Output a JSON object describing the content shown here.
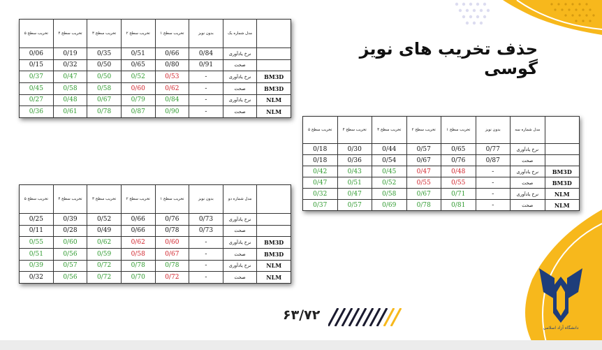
{
  "title": "حذف تخریب های نویز گوسی",
  "page_number": "۶۳/۷۲",
  "colors": {
    "green": "#2e9a2e",
    "red": "#d0222a",
    "accent_yellow": "#f7b81c",
    "navy": "#1e3d7a"
  },
  "table1": {
    "headers": [
      "تخریب سطح ۵",
      "تخریب سطح ۴",
      "تخریب سطح ۳",
      "تخریب سطح ۲",
      "تخریب سطح ۱",
      "بدون نویز",
      "مدل شماره یک",
      ""
    ],
    "rows": [
      {
        "cells": [
          "0/06",
          "0/19",
          "0/35",
          "0/51",
          "0/66",
          "0/84"
        ],
        "colors": [
          "b",
          "b",
          "b",
          "b",
          "b",
          "b"
        ],
        "metric": "نرخ یادآوری",
        "method": ""
      },
      {
        "cells": [
          "0/15",
          "0/32",
          "0/50",
          "0/65",
          "0/80",
          "0/91"
        ],
        "colors": [
          "b",
          "b",
          "b",
          "b",
          "b",
          "b"
        ],
        "metric": "صحت",
        "method": ""
      },
      {
        "cells": [
          "0/37",
          "0/47",
          "0/50",
          "0/52",
          "0/53",
          "-"
        ],
        "colors": [
          "g",
          "g",
          "g",
          "g",
          "r",
          "b"
        ],
        "metric": "نرخ یادآوری",
        "method": "BM3D"
      },
      {
        "cells": [
          "0/45",
          "0/58",
          "0/58",
          "0/60",
          "0/62",
          "-"
        ],
        "colors": [
          "g",
          "g",
          "g",
          "r",
          "r",
          "b"
        ],
        "metric": "صحت",
        "method": "BM3D"
      },
      {
        "cells": [
          "0/27",
          "0/48",
          "0/67",
          "0/79",
          "0/84",
          "-"
        ],
        "colors": [
          "g",
          "g",
          "g",
          "g",
          "g",
          "b"
        ],
        "metric": "نرخ یادآوری",
        "method": "NLM"
      },
      {
        "cells": [
          "0/36",
          "0/61",
          "0/78",
          "0/87",
          "0/90",
          "-"
        ],
        "colors": [
          "g",
          "g",
          "g",
          "g",
          "g",
          "b"
        ],
        "metric": "صحت",
        "method": "NLM"
      }
    ]
  },
  "table2": {
    "headers": [
      "تخریب سطح ۵",
      "تخریب سطح ۴",
      "تخریب سطح ۳",
      "تخریب سطح ۲",
      "تخریب سطح ۱",
      "بدون نویز",
      "مدل شماره دو",
      ""
    ],
    "rows": [
      {
        "cells": [
          "0/25",
          "0/39",
          "0/52",
          "0/66",
          "0/76",
          "0/73"
        ],
        "colors": [
          "b",
          "b",
          "b",
          "b",
          "b",
          "b"
        ],
        "metric": "نرخ یادآوری",
        "method": ""
      },
      {
        "cells": [
          "0/11",
          "0/28",
          "0/49",
          "0/66",
          "0/78",
          "0/73"
        ],
        "colors": [
          "b",
          "b",
          "b",
          "b",
          "b",
          "b"
        ],
        "metric": "صحت",
        "method": ""
      },
      {
        "cells": [
          "0/55",
          "0/60",
          "0/62",
          "0/62",
          "0/60",
          "-"
        ],
        "colors": [
          "g",
          "g",
          "g",
          "r",
          "r",
          "b"
        ],
        "metric": "نرخ یادآوری",
        "method": "BM3D"
      },
      {
        "cells": [
          "0/51",
          "0/56",
          "0/59",
          "0/58",
          "0/67",
          "-"
        ],
        "colors": [
          "g",
          "g",
          "g",
          "r",
          "r",
          "b"
        ],
        "metric": "صحت",
        "method": "BM3D"
      },
      {
        "cells": [
          "0/39",
          "0/57",
          "0/72",
          "0/78",
          "0/78",
          "-"
        ],
        "colors": [
          "g",
          "g",
          "g",
          "g",
          "g",
          "b"
        ],
        "metric": "نرخ یادآوری",
        "method": "NLM"
      },
      {
        "cells": [
          "0/32",
          "0/56",
          "0/72",
          "0/70",
          "0/72",
          "-"
        ],
        "colors": [
          "b",
          "g",
          "g",
          "g",
          "r",
          "b"
        ],
        "metric": "صحت",
        "method": "NLM"
      }
    ]
  },
  "table3": {
    "headers": [
      "تخریب سطح ۵",
      "تخریب سطح ۴",
      "تخریب سطح ۳",
      "تخریب سطح ۲",
      "تخریب سطح ۱",
      "بدون نویز",
      "مدل شماره سه",
      ""
    ],
    "rows": [
      {
        "cells": [
          "0/18",
          "0/30",
          "0/44",
          "0/57",
          "0/65",
          "0/77"
        ],
        "colors": [
          "b",
          "b",
          "b",
          "b",
          "b",
          "b"
        ],
        "metric": "نرخ یادآوری",
        "method": ""
      },
      {
        "cells": [
          "0/18",
          "0/36",
          "0/54",
          "0/67",
          "0/76",
          "0/87"
        ],
        "colors": [
          "b",
          "b",
          "b",
          "b",
          "b",
          "b"
        ],
        "metric": "صحت",
        "method": ""
      },
      {
        "cells": [
          "0/42",
          "0/43",
          "0/45",
          "0/47",
          "0/48",
          "-"
        ],
        "colors": [
          "g",
          "g",
          "g",
          "r",
          "r",
          "b"
        ],
        "metric": "نرخ یادآوری",
        "method": "BM3D"
      },
      {
        "cells": [
          "0/47",
          "0/51",
          "0/52",
          "0/55",
          "0/55",
          "-"
        ],
        "colors": [
          "g",
          "g",
          "g",
          "r",
          "r",
          "b"
        ],
        "metric": "صحت",
        "method": "BM3D"
      },
      {
        "cells": [
          "0/32",
          "0/47",
          "0/58",
          "0/67",
          "0/71",
          "-"
        ],
        "colors": [
          "g",
          "g",
          "g",
          "g",
          "g",
          "b"
        ],
        "metric": "نرخ یادآوری",
        "method": "NLM"
      },
      {
        "cells": [
          "0/37",
          "0/57",
          "0/69",
          "0/78",
          "0/81",
          "-"
        ],
        "colors": [
          "g",
          "g",
          "g",
          "g",
          "g",
          "b"
        ],
        "metric": "صحت",
        "method": "NLM"
      }
    ]
  }
}
